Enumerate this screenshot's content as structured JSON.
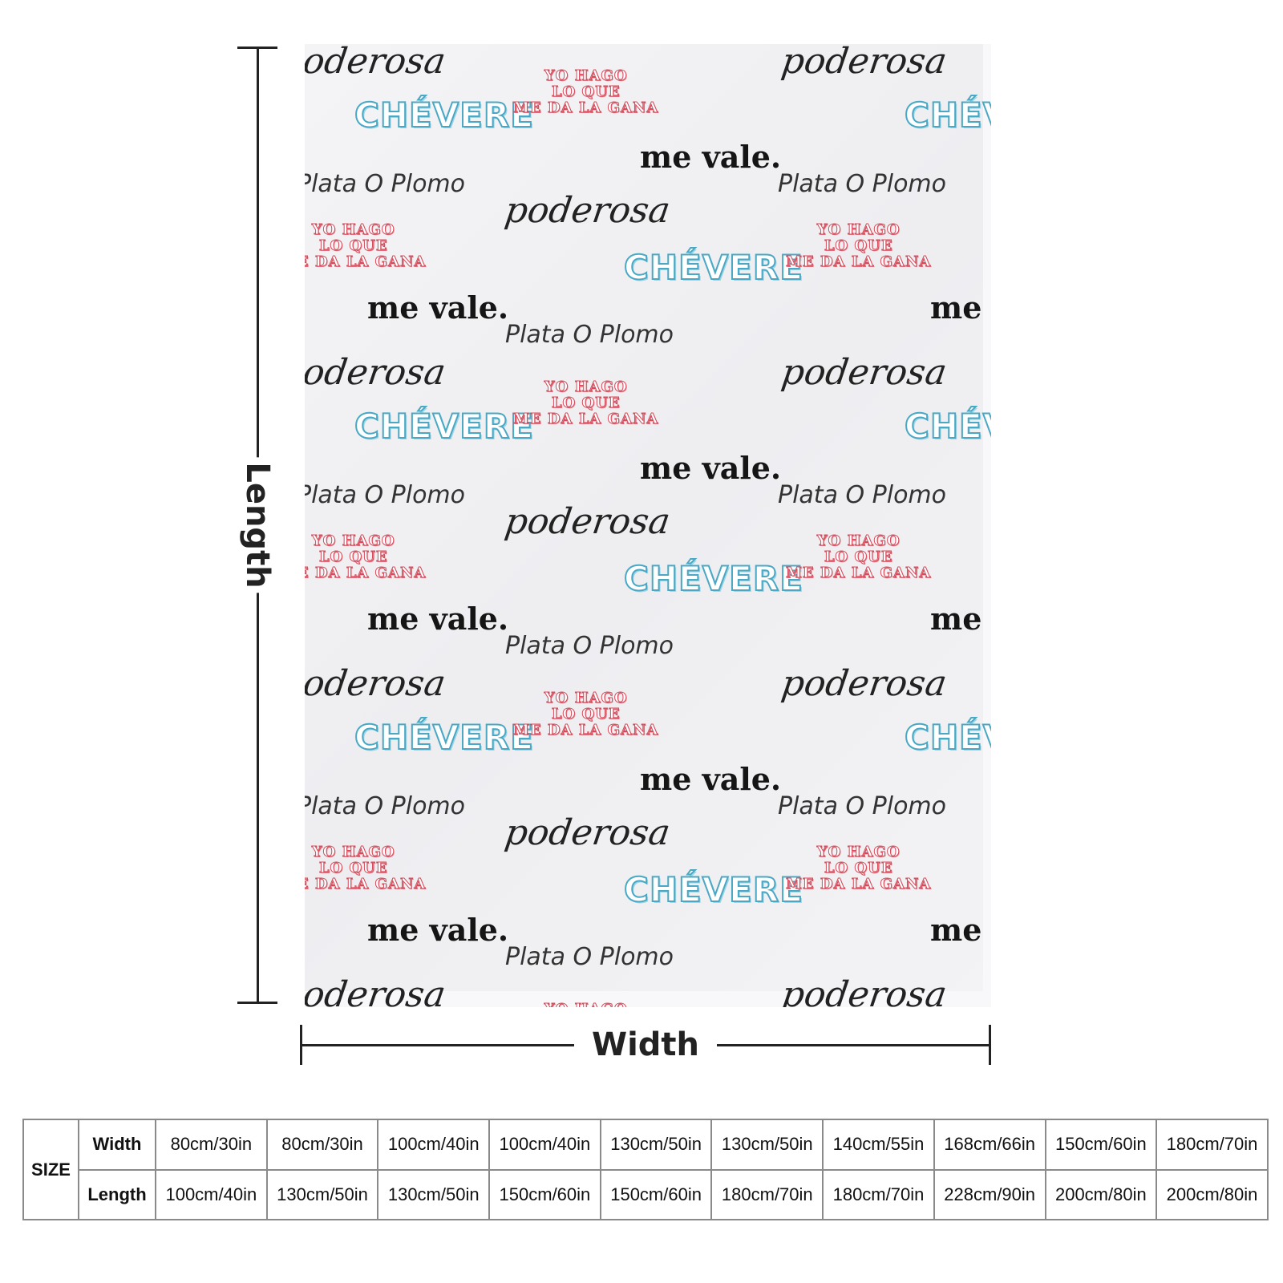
{
  "diagram": {
    "length_label": "Length",
    "width_label": "Width"
  },
  "pattern": {
    "chevere": "CHÉVERE",
    "me_vale": "me vale.",
    "poderosa": "poderosa",
    "plata_o_plomo": "Plata O Plomo",
    "yo_hago": [
      "YO HAGO",
      "LO QUE",
      "ME DA LA GANA"
    ],
    "colors": {
      "chevere": "#4aa8c4",
      "yo_hago": "#d64a5a",
      "text": "#151515"
    }
  },
  "size_table": {
    "size_label": "SIZE",
    "width_label": "Width",
    "length_label": "Length",
    "widths": [
      "80cm/30in",
      "80cm/30in",
      "100cm/40in",
      "100cm/40in",
      "130cm/50in",
      "130cm/50in",
      "140cm/55in",
      "168cm/66in",
      "150cm/60in",
      "180cm/70in"
    ],
    "lengths": [
      "100cm/40in",
      "130cm/50in",
      "130cm/50in",
      "150cm/60in",
      "150cm/60in",
      "180cm/70in",
      "180cm/70in",
      "228cm/90in",
      "200cm/80in",
      "200cm/80in"
    ]
  }
}
